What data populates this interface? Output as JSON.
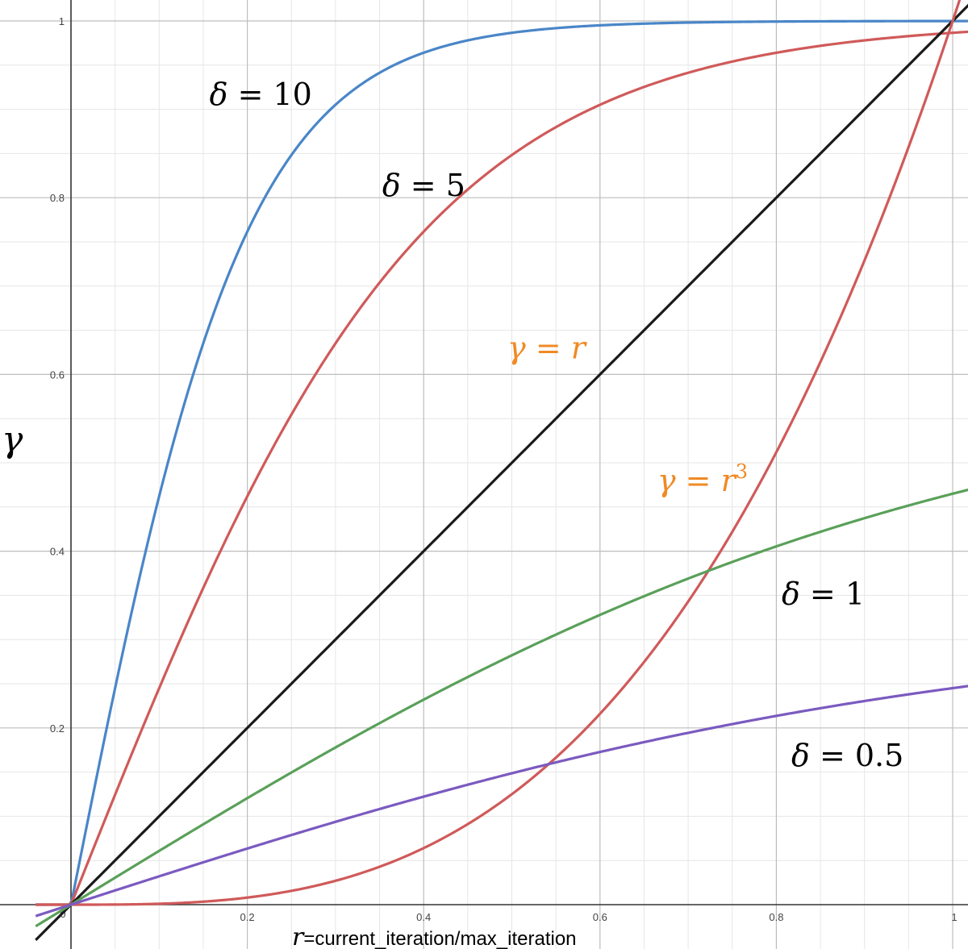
{
  "chart_data": {
    "type": "line",
    "xlabel_var": "r",
    "xlabel_text": "=current_iteration/max_iteration",
    "ylabel": "γ",
    "xlim": [
      -0.04,
      1.05
    ],
    "ylim": [
      -0.03,
      1.01
    ],
    "x_ticks": [
      0,
      0.2,
      0.4,
      0.6,
      0.8,
      1
    ],
    "x_tick_labels": [
      "0",
      "0.2",
      "0.4",
      "0.6",
      "0.8",
      "1"
    ],
    "y_ticks": [
      0.2,
      0.4,
      0.6,
      0.8,
      1
    ],
    "y_tick_labels": [
      "0.2",
      "0.4",
      "0.6",
      "0.8",
      "1"
    ],
    "grid": true,
    "series": [
      {
        "color": "#4a86c8",
        "kind": "shifted_sigmoid",
        "delta": 10
      },
      {
        "color": "#d05a5a",
        "kind": "shifted_sigmoid",
        "delta": 5
      },
      {
        "color": "#1a1a1a",
        "kind": "identity"
      },
      {
        "color": "#d05a5a",
        "kind": "cube"
      },
      {
        "color": "#5aa05a",
        "kind": "shifted_sigmoid",
        "delta": 1
      },
      {
        "color": "#7b5ac0",
        "kind": "shifted_sigmoid",
        "delta": 0.5
      }
    ],
    "annotations": [
      {
        "sym": "δ",
        "rest": " = 10",
        "x": 0.157,
        "y": 0.905,
        "color": "#000000"
      },
      {
        "sym": "δ",
        "rest": " = 5",
        "x": 0.353,
        "y": 0.802,
        "color": "#000000"
      },
      {
        "sym": "γ",
        "rest": " = r",
        "x": 0.495,
        "y": 0.618,
        "color": "#f08a24"
      },
      {
        "sym": "γ",
        "rest": " = r",
        "sup": "3",
        "x": 0.665,
        "y": 0.468,
        "color": "#f08a24"
      },
      {
        "sym": "δ",
        "rest": " = 1",
        "x": 0.806,
        "y": 0.34,
        "color": "#000000"
      },
      {
        "sym": "δ",
        "rest": " = 0.5",
        "x": 0.817,
        "y": 0.157,
        "color": "#000000"
      }
    ]
  }
}
